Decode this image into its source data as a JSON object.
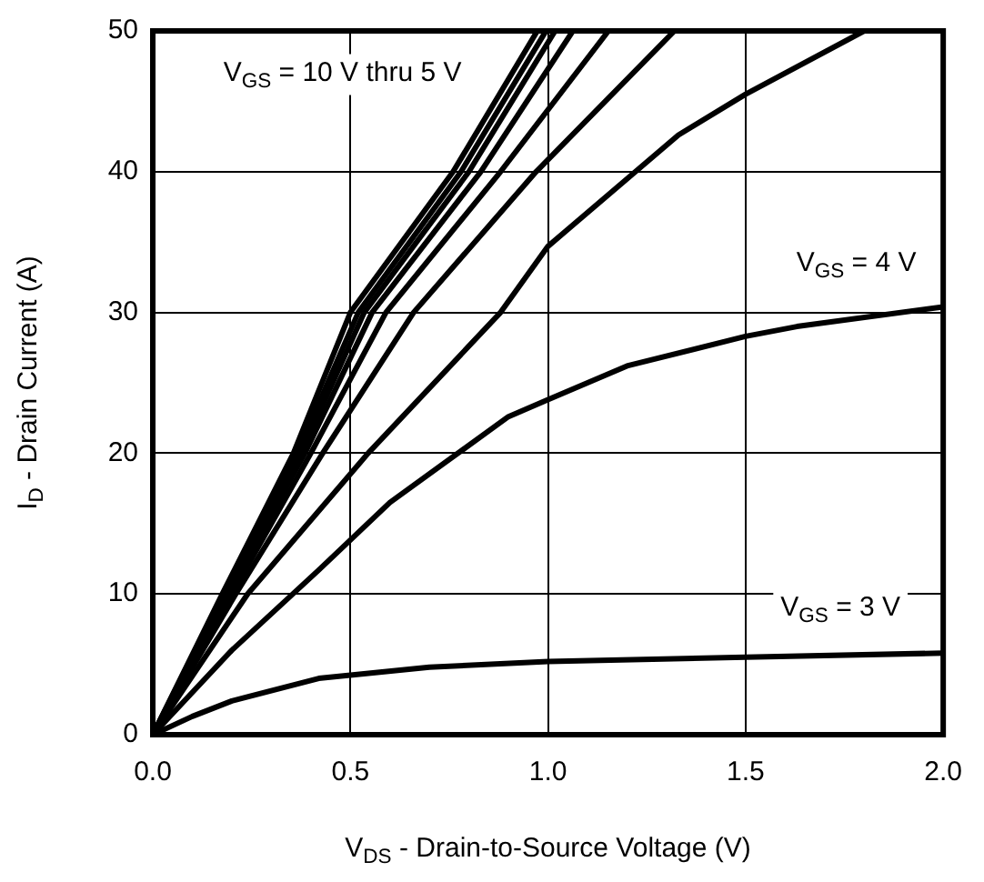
{
  "chart_data": {
    "type": "line",
    "xlabel": "V$_{DS}$ - Drain-to-Source Voltage (V)",
    "ylabel": "I$_{D}$ - Drain Current (A)",
    "xlim": [
      0,
      2
    ],
    "xticks": [
      {
        "value": 0,
        "label": "0.0"
      },
      {
        "value": 0.5,
        "label": "0.5"
      },
      {
        "value": 1,
        "label": "1.0"
      },
      {
        "value": 1.5,
        "label": "1.5"
      },
      {
        "value": 2,
        "label": "2.0"
      }
    ],
    "ylim": [
      0,
      50
    ],
    "yticks": [
      0,
      10,
      20,
      30,
      40,
      50
    ],
    "grid": true,
    "legend": false,
    "marker": "none",
    "line_style": "solid",
    "series": [
      {
        "color": "#000000",
        "x": [
          0,
          0.176,
          0.356,
          0.5,
          0.76,
          0.973
        ],
        "values": [
          0,
          10,
          20,
          30,
          40,
          50
        ]
      },
      {
        "color": "#000000",
        "x": [
          0,
          0.18,
          0.365,
          0.52,
          0.78,
          0.995
        ],
        "values": [
          0,
          10,
          20,
          30,
          40,
          50
        ]
      },
      {
        "color": "#000000",
        "x": [
          0,
          0.185,
          0.375,
          0.535,
          0.8,
          1.018
        ],
        "values": [
          0,
          10,
          20,
          30,
          40,
          50
        ]
      },
      {
        "color": "#000000",
        "x": [
          0,
          0.19,
          0.385,
          0.555,
          0.83,
          1.063
        ],
        "values": [
          0,
          10,
          20,
          30,
          40,
          50
        ]
      },
      {
        "color": "#000000",
        "x": [
          0,
          0.2,
          0.4,
          0.59,
          0.88,
          1.153
        ],
        "values": [
          0,
          10,
          20,
          30,
          40,
          50
        ]
      },
      {
        "color": "#000000",
        "x": [
          0,
          0.21,
          0.43,
          0.66,
          0.97,
          1.32
        ],
        "values": [
          0,
          10,
          20,
          30,
          40,
          50
        ]
      },
      {
        "color": "#000000",
        "x": [
          0,
          0.24,
          0.545,
          0.88,
          1,
          1.33,
          1.5,
          1.8
        ],
        "values": [
          0,
          10,
          20,
          30,
          34.7,
          42.6,
          45.5,
          50
        ]
      },
      {
        "color": "#000000",
        "x": [
          0,
          0.1,
          0.2,
          0.42,
          0.6,
          0.9,
          1,
          1.2,
          1.5,
          1.63,
          2
        ],
        "values": [
          0,
          3,
          6,
          11.7,
          16.5,
          22.6,
          23.8,
          26.2,
          28.3,
          29,
          30.4
        ]
      },
      {
        "color": "#000000",
        "x": [
          0,
          0.1,
          0.2,
          0.42,
          0.7,
          1,
          1.5,
          2
        ],
        "values": [
          0,
          1.3,
          2.4,
          4,
          4.8,
          5.2,
          5.5,
          5.8
        ]
      }
    ],
    "annotations": [
      "V$_{GS}$ = 10 V thru 5 V",
      "V$_{GS}$ = 4 V",
      "V$_{GS}$ = 3 V"
    ]
  }
}
